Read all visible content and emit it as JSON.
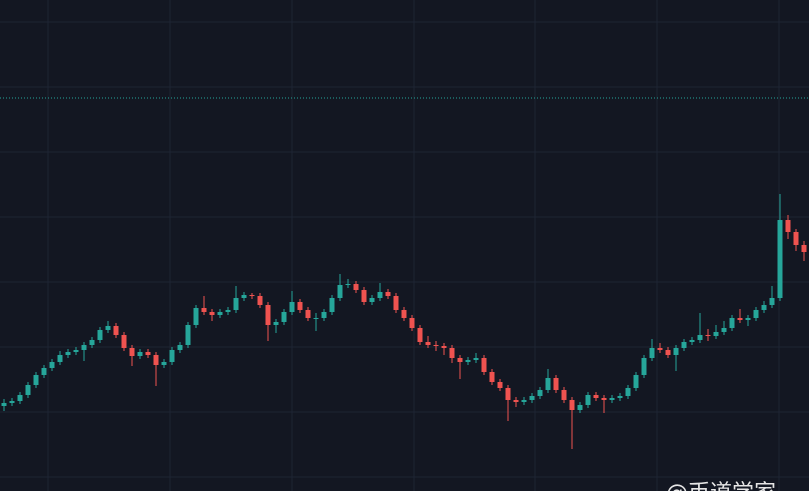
{
  "chart_data": {
    "type": "candlestick",
    "ylim": [
      0,
      491
    ],
    "up_color": "#26a69a",
    "down_color": "#ef5350",
    "price_line": 393,
    "watermark": "@币道学家",
    "candles": [
      [
        85,
        92,
        80,
        88
      ],
      [
        88,
        93,
        85,
        90
      ],
      [
        90,
        99,
        87,
        96
      ],
      [
        96,
        109,
        93,
        106
      ],
      [
        106,
        119,
        103,
        116
      ],
      [
        116,
        126,
        113,
        123
      ],
      [
        123,
        132,
        120,
        129
      ],
      [
        129,
        140,
        126,
        136
      ],
      [
        136,
        142,
        133,
        139
      ],
      [
        139,
        144,
        136,
        141
      ],
      [
        141,
        149,
        130,
        146
      ],
      [
        146,
        154,
        143,
        151
      ],
      [
        151,
        164,
        148,
        161
      ],
      [
        161,
        170,
        158,
        165
      ],
      [
        165,
        168,
        153,
        156
      ],
      [
        156,
        159,
        140,
        143
      ],
      [
        143,
        146,
        125,
        135
      ],
      [
        135,
        142,
        132,
        139
      ],
      [
        139,
        142,
        133,
        136
      ],
      [
        136,
        139,
        105,
        126
      ],
      [
        126,
        132,
        123,
        129
      ],
      [
        129,
        144,
        126,
        141
      ],
      [
        141,
        149,
        138,
        146
      ],
      [
        146,
        169,
        143,
        166
      ],
      [
        166,
        186,
        163,
        183
      ],
      [
        183,
        195,
        176,
        179
      ],
      [
        179,
        182,
        170,
        176
      ],
      [
        176,
        182,
        173,
        179
      ],
      [
        179,
        184,
        176,
        181
      ],
      [
        181,
        205,
        178,
        193
      ],
      [
        193,
        199,
        190,
        196
      ],
      [
        196,
        198,
        192,
        195
      ],
      [
        195,
        198,
        183,
        186
      ],
      [
        186,
        189,
        150,
        166
      ],
      [
        166,
        172,
        158,
        169
      ],
      [
        169,
        182,
        166,
        179
      ],
      [
        179,
        200,
        176,
        189
      ],
      [
        189,
        192,
        178,
        181
      ],
      [
        181,
        184,
        170,
        173
      ],
      [
        173,
        178,
        160,
        173
      ],
      [
        173,
        182,
        170,
        179
      ],
      [
        179,
        196,
        176,
        193
      ],
      [
        193,
        217,
        190,
        206
      ],
      [
        206,
        212,
        203,
        207
      ],
      [
        207,
        210,
        198,
        201
      ],
      [
        201,
        204,
        186,
        189
      ],
      [
        189,
        196,
        186,
        193
      ],
      [
        193,
        208,
        190,
        199
      ],
      [
        199,
        202,
        192,
        195
      ],
      [
        195,
        198,
        178,
        181
      ],
      [
        181,
        184,
        170,
        173
      ],
      [
        173,
        176,
        160,
        163
      ],
      [
        163,
        166,
        146,
        149
      ],
      [
        149,
        155,
        143,
        146
      ],
      [
        146,
        150,
        140,
        145
      ],
      [
        145,
        148,
        136,
        143
      ],
      [
        143,
        146,
        128,
        133
      ],
      [
        133,
        136,
        112,
        129
      ],
      [
        129,
        134,
        126,
        131
      ],
      [
        131,
        138,
        128,
        133
      ],
      [
        133,
        136,
        116,
        119
      ],
      [
        119,
        122,
        106,
        109
      ],
      [
        109,
        112,
        100,
        103
      ],
      [
        103,
        106,
        70,
        91
      ],
      [
        91,
        94,
        84,
        89
      ],
      [
        89,
        94,
        86,
        91
      ],
      [
        91,
        98,
        88,
        95
      ],
      [
        95,
        104,
        92,
        101
      ],
      [
        101,
        122,
        98,
        113
      ],
      [
        113,
        116,
        98,
        101
      ],
      [
        101,
        104,
        88,
        91
      ],
      [
        91,
        94,
        42,
        81
      ],
      [
        81,
        89,
        78,
        86
      ],
      [
        86,
        99,
        83,
        96
      ],
      [
        96,
        99,
        90,
        93
      ],
      [
        93,
        96,
        78,
        91
      ],
      [
        91,
        96,
        88,
        93
      ],
      [
        93,
        98,
        90,
        95
      ],
      [
        95,
        106,
        92,
        103
      ],
      [
        103,
        119,
        100,
        116
      ],
      [
        116,
        136,
        113,
        133
      ],
      [
        133,
        152,
        130,
        143
      ],
      [
        143,
        148,
        138,
        141
      ],
      [
        141,
        144,
        133,
        136
      ],
      [
        136,
        146,
        120,
        143
      ],
      [
        143,
        152,
        140,
        149
      ],
      [
        149,
        154,
        146,
        151
      ],
      [
        151,
        178,
        148,
        156
      ],
      [
        156,
        162,
        150,
        155
      ],
      [
        155,
        166,
        152,
        159
      ],
      [
        159,
        170,
        156,
        163
      ],
      [
        163,
        176,
        160,
        173
      ],
      [
        173,
        182,
        168,
        171
      ],
      [
        171,
        176,
        165,
        173
      ],
      [
        173,
        184,
        170,
        181
      ],
      [
        181,
        190,
        178,
        186
      ],
      [
        186,
        205,
        183,
        193
      ],
      [
        193,
        297,
        190,
        271
      ],
      [
        271,
        276,
        252,
        259
      ],
      [
        259,
        262,
        240,
        246
      ],
      [
        246,
        250,
        230,
        239
      ]
    ]
  }
}
